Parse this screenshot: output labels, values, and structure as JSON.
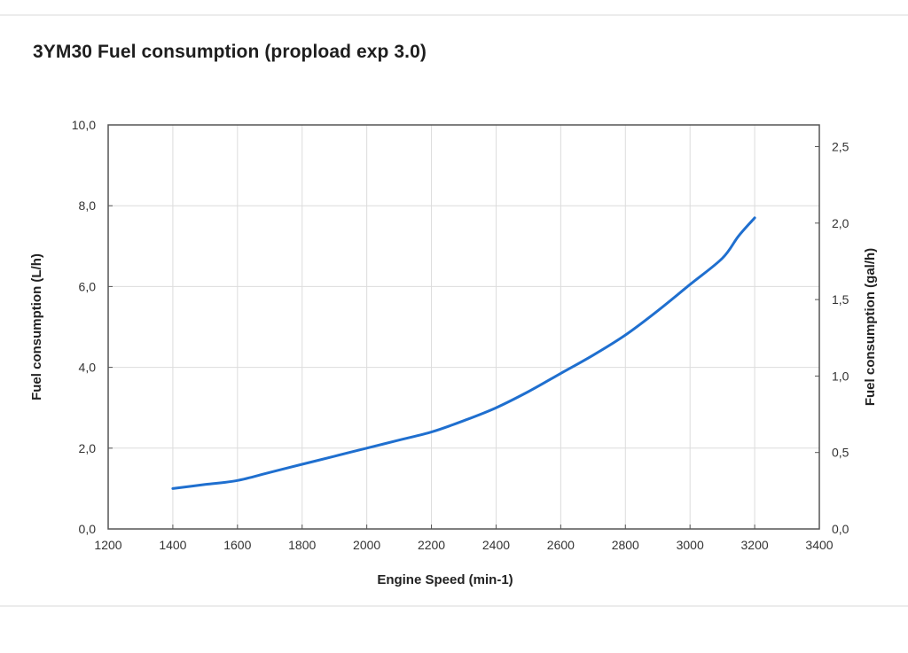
{
  "chart_data": {
    "type": "line",
    "title": "3YM30 Fuel consumption (propload exp 3.0)",
    "xlabel": "Engine Speed (min-1)",
    "ylabel": "Fuel consumption (L/h)",
    "y2label": "Fuel consumption (gal/h)",
    "xlim": [
      1200,
      3400
    ],
    "ylim": [
      0,
      10
    ],
    "y2lim": [
      0,
      2.642
    ],
    "grid": true,
    "legend": "none",
    "x_ticks": [
      "1200",
      "1400",
      "1600",
      "1800",
      "2000",
      "2200",
      "2400",
      "2600",
      "2800",
      "3000",
      "3200",
      "3400"
    ],
    "y_ticks": [
      "0,0",
      "2,0",
      "4,0",
      "6,0",
      "8,0",
      "10,0"
    ],
    "y2_ticks": [
      "0,0",
      "0,5",
      "1,0",
      "1,5",
      "2,0",
      "2,5"
    ],
    "series": [
      {
        "name": "Fuel consumption",
        "color": "#1f6fcf",
        "x": [
          1400,
          1500,
          1600,
          1700,
          1800,
          1900,
          2000,
          2100,
          2200,
          2300,
          2400,
          2500,
          2600,
          2700,
          2800,
          2900,
          3000,
          3100,
          3150,
          3200
        ],
        "y": [
          1.0,
          1.1,
          1.2,
          1.4,
          1.6,
          1.8,
          2.0,
          2.2,
          2.4,
          2.68,
          3.0,
          3.4,
          3.85,
          4.3,
          4.8,
          5.4,
          6.05,
          6.7,
          7.25,
          7.7
        ]
      }
    ]
  }
}
